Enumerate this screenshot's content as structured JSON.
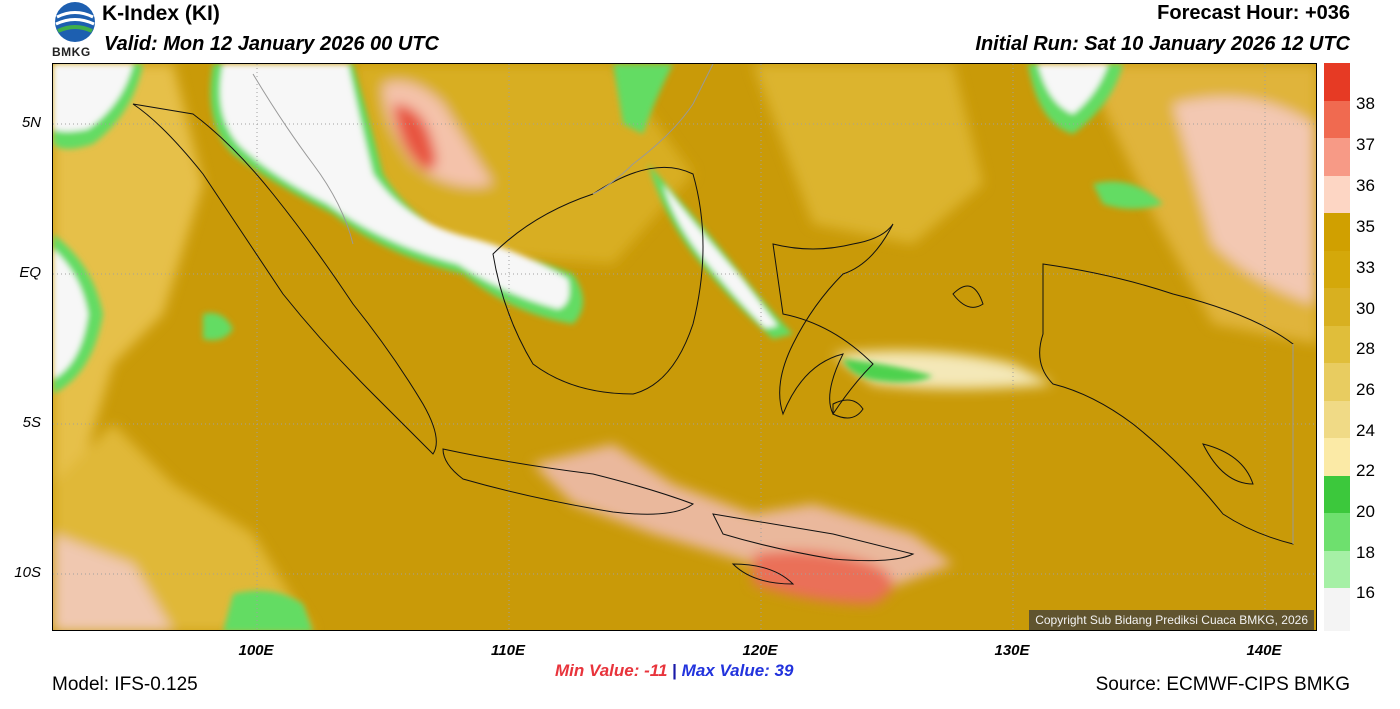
{
  "header": {
    "logo_text": "BMKG",
    "title": "K-Index (KI)",
    "valid": "Valid: Mon 12 January 2026 00 UTC",
    "forecast_hour": "Forecast Hour: +036",
    "initial_run": "Initial Run: Sat 10 January 2026 12 UTC"
  },
  "map": {
    "lat_labels": [
      "5N",
      "EQ",
      "5S",
      "10S"
    ],
    "lon_labels": [
      "100E",
      "110E",
      "120E",
      "130E",
      "140E"
    ],
    "copyright": "Copyright Sub Bidang Prediksi Cuaca BMKG, 2026"
  },
  "colorbar": {
    "levels": [
      "38",
      "37",
      "36",
      "35",
      "33",
      "30",
      "28",
      "26",
      "24",
      "22",
      "20",
      "18",
      "16"
    ],
    "colors": [
      "#e63a24",
      "#f06a50",
      "#f79a86",
      "#fdd6c4",
      "#d0a000",
      "#d4a80a",
      "#d8b020",
      "#e0be3a",
      "#e8cc60",
      "#f0da86",
      "#fbeaa6",
      "#3cc83c",
      "#6ee06e",
      "#a6f0a6",
      "#f4f4f4"
    ]
  },
  "footer": {
    "min_value": "Min Value: -11",
    "separator": "|",
    "max_value": "Max Value:  39",
    "model": "Model: IFS-0.125",
    "source": "Source: ECMWF-CIPS BMKG"
  }
}
